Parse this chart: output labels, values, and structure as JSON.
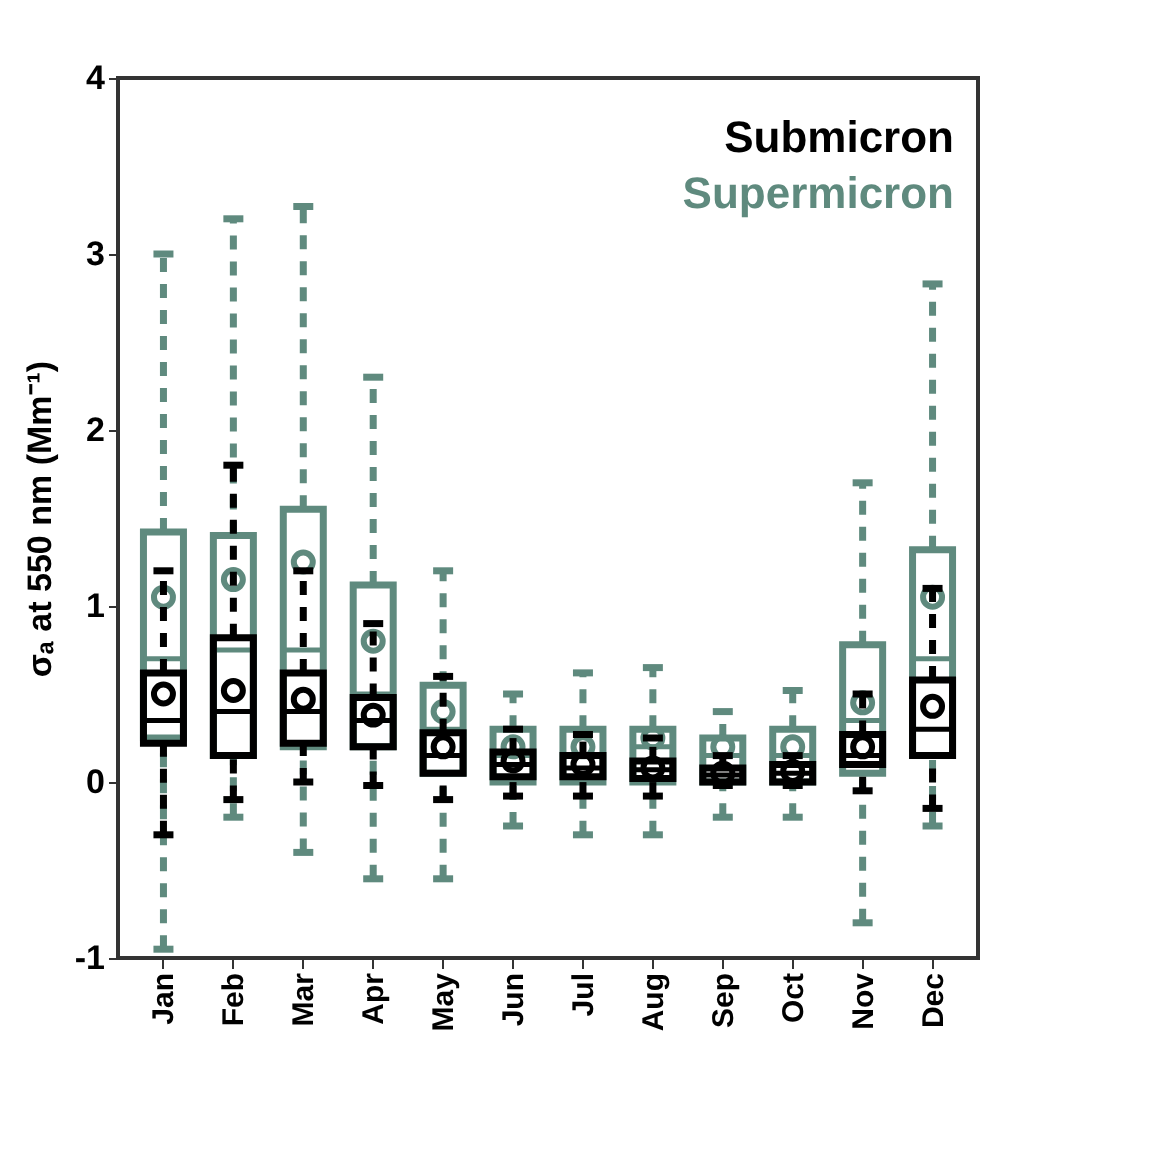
{
  "chart_data": {
    "type": "box",
    "ylabel": "σₐ at 550 nm (Mm⁻¹)",
    "categories": [
      "Jan",
      "Feb",
      "Mar",
      "Apr",
      "May",
      "Jun",
      "Jul",
      "Aug",
      "Sep",
      "Oct",
      "Nov",
      "Dec"
    ],
    "ylim": [
      -1,
      4
    ],
    "yticks": [
      -1,
      0,
      1,
      2,
      3,
      4
    ],
    "grid": false,
    "line_style": "dashed",
    "marker": "circle",
    "series": [
      {
        "name": "Supermicron",
        "color": "#5f8a7e",
        "boxes": [
          {
            "low": -0.95,
            "q1": 0.25,
            "median": 0.7,
            "q3": 1.42,
            "high": 3.0,
            "mean": 1.05
          },
          {
            "low": -0.2,
            "q1": 0.15,
            "median": 0.75,
            "q3": 1.4,
            "high": 3.2,
            "mean": 1.15
          },
          {
            "low": -0.4,
            "q1": 0.2,
            "median": 0.75,
            "q3": 1.55,
            "high": 3.27,
            "mean": 1.25
          },
          {
            "low": -0.55,
            "q1": 0.2,
            "median": 0.5,
            "q3": 1.12,
            "high": 2.3,
            "mean": 0.8
          },
          {
            "low": -0.55,
            "q1": 0.05,
            "median": 0.3,
            "q3": 0.55,
            "high": 1.2,
            "mean": 0.4
          },
          {
            "low": -0.25,
            "q1": 0.0,
            "median": 0.15,
            "q3": 0.3,
            "high": 0.5,
            "mean": 0.2
          },
          {
            "low": -0.3,
            "q1": 0.0,
            "median": 0.15,
            "q3": 0.3,
            "high": 0.62,
            "mean": 0.2
          },
          {
            "low": -0.3,
            "q1": 0.0,
            "median": 0.2,
            "q3": 0.3,
            "high": 0.65,
            "mean": 0.25
          },
          {
            "low": -0.2,
            "q1": 0.0,
            "median": 0.15,
            "q3": 0.25,
            "high": 0.4,
            "mean": 0.2
          },
          {
            "low": -0.2,
            "q1": 0.0,
            "median": 0.15,
            "q3": 0.3,
            "high": 0.52,
            "mean": 0.2
          },
          {
            "low": -0.8,
            "q1": 0.05,
            "median": 0.35,
            "q3": 0.78,
            "high": 1.7,
            "mean": 0.45
          },
          {
            "low": -0.25,
            "q1": 0.15,
            "median": 0.7,
            "q3": 1.32,
            "high": 2.83,
            "mean": 1.05
          }
        ]
      },
      {
        "name": "Submicron",
        "color": "#000000",
        "boxes": [
          {
            "low": -0.3,
            "q1": 0.22,
            "median": 0.35,
            "q3": 0.62,
            "high": 1.2,
            "mean": 0.5
          },
          {
            "low": -0.1,
            "q1": 0.15,
            "median": 0.4,
            "q3": 0.82,
            "high": 1.8,
            "mean": 0.52
          },
          {
            "low": 0.0,
            "q1": 0.22,
            "median": 0.4,
            "q3": 0.62,
            "high": 1.2,
            "mean": 0.47
          },
          {
            "low": -0.02,
            "q1": 0.2,
            "median": 0.35,
            "q3": 0.48,
            "high": 0.9,
            "mean": 0.38
          },
          {
            "low": -0.1,
            "q1": 0.05,
            "median": 0.15,
            "q3": 0.28,
            "high": 0.6,
            "mean": 0.2
          },
          {
            "low": -0.08,
            "q1": 0.03,
            "median": 0.1,
            "q3": 0.17,
            "high": 0.3,
            "mean": 0.12
          },
          {
            "low": -0.08,
            "q1": 0.03,
            "median": 0.08,
            "q3": 0.15,
            "high": 0.27,
            "mean": 0.1
          },
          {
            "low": -0.08,
            "q1": 0.02,
            "median": 0.07,
            "q3": 0.12,
            "high": 0.25,
            "mean": 0.08
          },
          {
            "low": -0.02,
            "q1": 0.0,
            "median": 0.04,
            "q3": 0.08,
            "high": 0.15,
            "mean": 0.05
          },
          {
            "low": -0.02,
            "q1": 0.0,
            "median": 0.05,
            "q3": 0.1,
            "high": 0.15,
            "mean": 0.06
          },
          {
            "low": -0.05,
            "q1": 0.1,
            "median": 0.15,
            "q3": 0.27,
            "high": 0.5,
            "mean": 0.2
          },
          {
            "low": -0.15,
            "q1": 0.15,
            "median": 0.3,
            "q3": 0.58,
            "high": 1.1,
            "mean": 0.43
          }
        ]
      }
    ]
  }
}
